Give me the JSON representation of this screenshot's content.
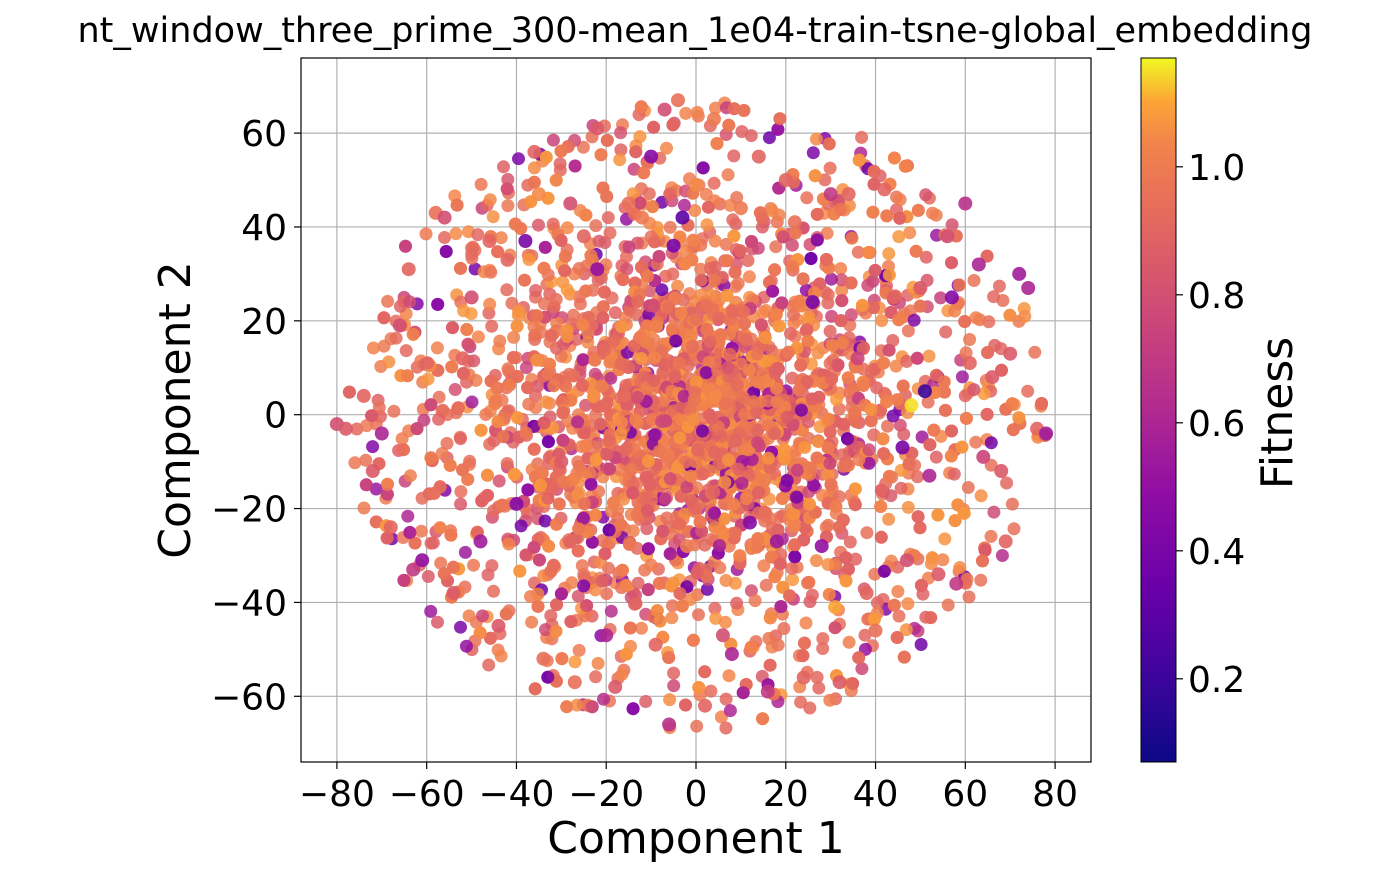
{
  "chart_data": {
    "type": "scatter",
    "title": "nt_window_three_prime_300-mean_1e04-train-tsne-global_embedding",
    "xlabel": "Component 1",
    "ylabel": "Component 2",
    "xlim": [
      -88,
      88
    ],
    "ylim": [
      -74,
      76
    ],
    "xticks": [
      -80,
      -60,
      -40,
      -20,
      0,
      20,
      40,
      60,
      80
    ],
    "xtick_labels": [
      "−80",
      "−60",
      "−40",
      "−20",
      "0",
      "20",
      "40",
      "60",
      "80"
    ],
    "yticks": [
      -60,
      -40,
      -20,
      0,
      20,
      40,
      60
    ],
    "ytick_labels": [
      "−60",
      "−40",
      "−20",
      "0",
      "20",
      "40",
      "60"
    ],
    "grid": true,
    "colormap": "plasma",
    "colorbar": {
      "label": "Fitness",
      "range": [
        0.07,
        1.17
      ],
      "ticks": [
        0.2,
        0.4,
        0.6,
        0.8,
        1.0
      ],
      "tick_labels": [
        "0.2",
        "0.4",
        "0.6",
        "0.8",
        "1.0"
      ]
    },
    "point_cloud": {
      "description": "dense roughly circular cloud of several thousand points, mostly fitness 0.8-1.0",
      "approx_radius": 78,
      "approx_count": 3500,
      "center": [
        0,
        0
      ]
    },
    "points": [
      [
        -80,
        -2,
        0.8
      ],
      [
        -78,
        -3,
        0.85
      ],
      [
        -74,
        4,
        0.9
      ],
      [
        -72,
        -12,
        0.85
      ],
      [
        -70,
        -4,
        0.6
      ],
      [
        -68,
        -24,
        0.9
      ],
      [
        -66,
        19,
        0.8
      ],
      [
        -64,
        31,
        0.9
      ],
      [
        -63,
        -33,
        0.7
      ],
      [
        -61,
        -31,
        0.5
      ],
      [
        -58,
        43,
        0.95
      ],
      [
        -56,
        42,
        0.8
      ],
      [
        -54,
        -38,
        0.85
      ],
      [
        -52,
        12,
        0.9
      ],
      [
        -50,
        25,
        0.8
      ],
      [
        -48,
        -27,
        0.55
      ],
      [
        -46,
        37,
        0.9
      ],
      [
        -44,
        -45,
        0.85
      ],
      [
        -42,
        33,
        0.9
      ],
      [
        -40,
        -19,
        0.45
      ],
      [
        -38,
        37,
        0.4
      ],
      [
        -36,
        56,
        0.9
      ],
      [
        -35,
        47,
        1.05
      ],
      [
        -34,
        -52,
        0.95
      ],
      [
        -30,
        -10,
        0.85
      ],
      [
        -28,
        45,
        0.8
      ],
      [
        -27,
        -57,
        0.95
      ],
      [
        -25,
        38,
        0.9
      ],
      [
        -22,
        61,
        0.85
      ],
      [
        -22,
        31,
        0.5
      ],
      [
        -20,
        -47,
        0.6
      ],
      [
        -18,
        -58,
        0.85
      ],
      [
        -15,
        45,
        0.95
      ],
      [
        -12,
        42,
        1.0
      ],
      [
        -10,
        55,
        0.45
      ],
      [
        -9,
        -49,
        0.9
      ],
      [
        -7,
        65,
        0.8
      ],
      [
        -6,
        -66,
        0.65
      ],
      [
        -5,
        36,
        0.4
      ],
      [
        -4,
        67,
        0.95
      ],
      [
        -3,
        42,
        0.3
      ],
      [
        -2,
        -28,
        1.0
      ],
      [
        0,
        49,
        1.05
      ],
      [
        2,
        -62,
        0.9
      ],
      [
        4,
        63,
        1.0
      ],
      [
        6,
        -47,
        0.8
      ],
      [
        8,
        -51,
        0.6
      ],
      [
        10,
        44,
        1.0
      ],
      [
        12,
        -23,
        0.45
      ],
      [
        14,
        55,
        0.9
      ],
      [
        16,
        -59,
        0.7
      ],
      [
        18,
        -27,
        0.55
      ],
      [
        20,
        50,
        0.9
      ],
      [
        22,
        41,
        0.95
      ],
      [
        24,
        -56,
        0.9
      ],
      [
        26,
        24,
        0.4
      ],
      [
        28,
        -28,
        0.5
      ],
      [
        30,
        47,
        0.7
      ],
      [
        31,
        -41,
        1.1
      ],
      [
        32,
        -57,
        0.85
      ],
      [
        34,
        47,
        0.9
      ],
      [
        36,
        12,
        0.75
      ],
      [
        38,
        -38,
        0.9
      ],
      [
        40,
        -46,
        0.95
      ],
      [
        42,
        48,
        0.9
      ],
      [
        44,
        25,
        0.9
      ],
      [
        46,
        -7,
        0.4
      ],
      [
        47,
        -31,
        0.8
      ],
      [
        48,
        2,
        1.15
      ],
      [
        50,
        27,
        0.85
      ],
      [
        51,
        5,
        0.2
      ],
      [
        52,
        -13,
        0.6
      ],
      [
        54,
        -34,
        0.85
      ],
      [
        56,
        38,
        0.8
      ],
      [
        57,
        25,
        0.45
      ],
      [
        58,
        -36,
        0.7
      ],
      [
        60,
        45,
        0.65
      ],
      [
        61,
        11,
        0.9
      ],
      [
        63,
        32,
        0.6
      ],
      [
        64,
        -9,
        0.75
      ],
      [
        66,
        8,
        0.85
      ],
      [
        68,
        -12,
        0.85
      ],
      [
        69,
        -27,
        0.9
      ],
      [
        70,
        13,
        0.85
      ],
      [
        72,
        30,
        0.55
      ],
      [
        74,
        27,
        0.6
      ],
      [
        76,
        -3,
        0.9
      ],
      [
        78,
        -4,
        0.55
      ]
    ]
  }
}
